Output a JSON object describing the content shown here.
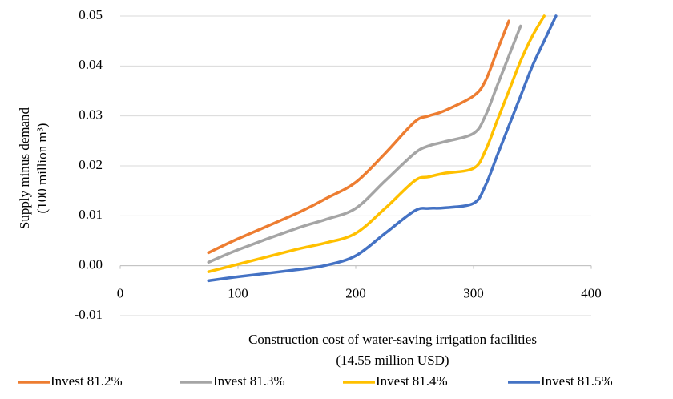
{
  "chart_data": {
    "type": "line",
    "ylabel": [
      "Supply minus demand",
      "(100 million m³)"
    ],
    "xlabel": [
      "Construction cost of water-saving irrigation facilities",
      "(14.55 million USD)"
    ],
    "x": [
      75,
      100,
      150,
      175,
      200,
      225,
      250,
      262,
      275,
      300,
      310,
      320,
      330,
      340,
      350,
      360,
      370
    ],
    "series": [
      {
        "name": "Invest 81.2%",
        "color": "#ed7d31",
        "values": [
          0.0026,
          0.0054,
          0.0105,
          0.0135,
          0.0167,
          0.0225,
          0.0288,
          0.03,
          0.031,
          0.034,
          0.037,
          0.043,
          0.049,
          null,
          null,
          null,
          null
        ]
      },
      {
        "name": "Invest 81.3%",
        "color": "#a5a5a5",
        "values": [
          0.0007,
          0.0032,
          0.0075,
          0.0093,
          0.0115,
          0.017,
          0.0225,
          0.024,
          0.0248,
          0.0265,
          0.03,
          0.036,
          0.042,
          0.048,
          null,
          null,
          null
        ]
      },
      {
        "name": "Invest 81.4%",
        "color": "#ffc000",
        "values": [
          -0.0012,
          0.0003,
          0.0033,
          0.0046,
          0.0065,
          0.0115,
          0.017,
          0.0178,
          0.0185,
          0.0195,
          0.023,
          0.029,
          0.035,
          0.041,
          0.046,
          0.05,
          null
        ]
      },
      {
        "name": "Invest 81.5%",
        "color": "#4472c4",
        "values": [
          -0.003,
          -0.0022,
          -0.0008,
          0.0001,
          0.002,
          0.0065,
          0.011,
          0.0115,
          0.0116,
          0.0125,
          0.016,
          0.022,
          0.028,
          0.034,
          0.04,
          0.045,
          0.05
        ]
      }
    ],
    "xlim": [
      0,
      400
    ],
    "xticks": [
      0,
      100,
      200,
      300,
      400
    ],
    "ylim": [
      -0.01,
      0.05
    ],
    "yticks": [
      -0.01,
      {
        "value": 0,
        "label": "0.00"
      },
      0.01,
      0.02,
      0.03,
      0.04,
      0.05
    ],
    "grid": true,
    "legend": "bottom"
  }
}
